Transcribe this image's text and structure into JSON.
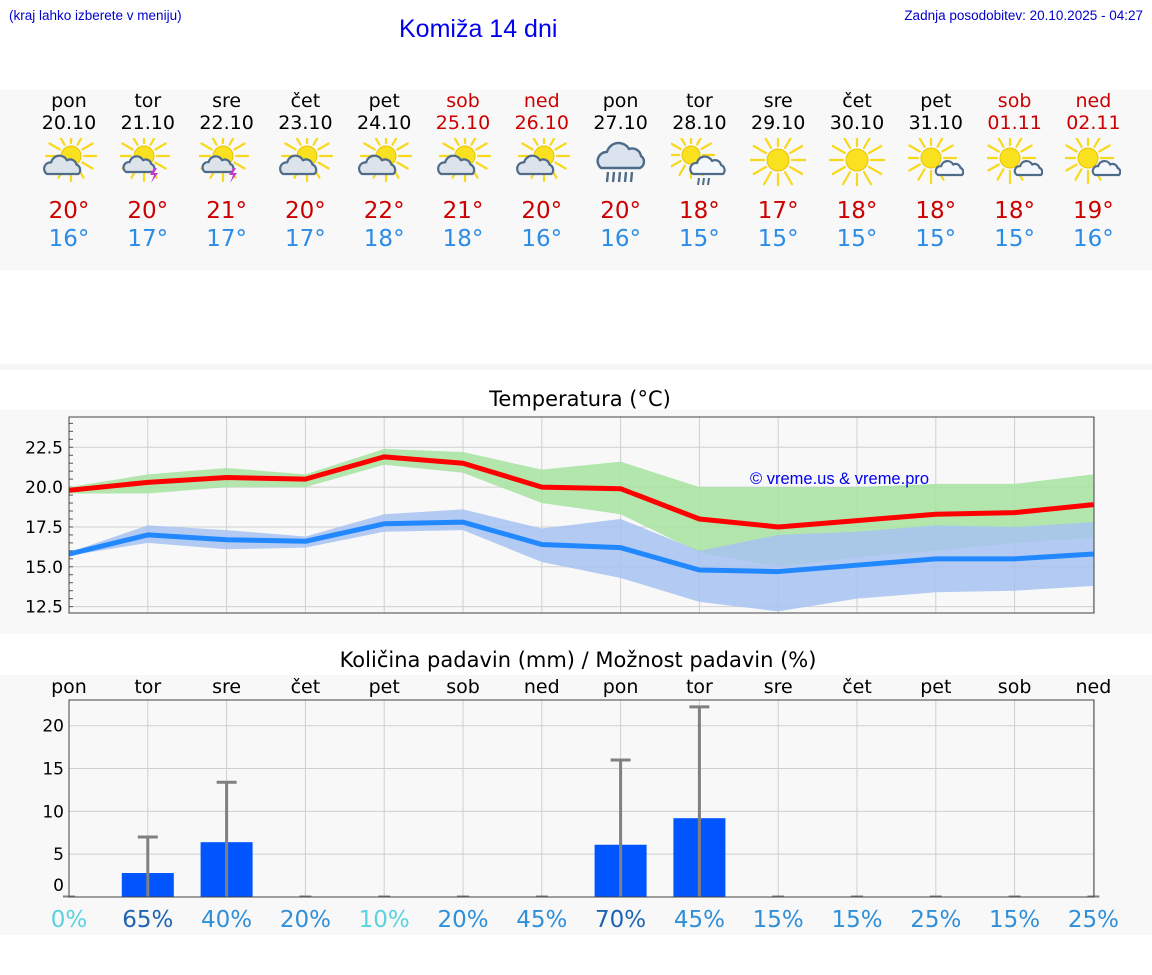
{
  "header": {
    "menu_hint": "(kraj lahko izberete v meniju)",
    "title": "Komiža 14 dni",
    "updated": "Zadnja posodobitev: 20.10.2025 - 04:27"
  },
  "days": [
    {
      "name": "pon",
      "date": "20.10",
      "weekend": false,
      "icon": "sun-cloud-icon",
      "max": "20°",
      "min": "16°"
    },
    {
      "name": "tor",
      "date": "21.10",
      "weekend": false,
      "icon": "sun-thunderstorm-icon",
      "max": "20°",
      "min": "17°"
    },
    {
      "name": "sre",
      "date": "22.10",
      "weekend": false,
      "icon": "sun-thunderstorm-icon",
      "max": "21°",
      "min": "17°"
    },
    {
      "name": "čet",
      "date": "23.10",
      "weekend": false,
      "icon": "sun-cloud-icon",
      "max": "20°",
      "min": "17°"
    },
    {
      "name": "pet",
      "date": "24.10",
      "weekend": false,
      "icon": "sun-cloud-icon",
      "max": "22°",
      "min": "18°"
    },
    {
      "name": "sob",
      "date": "25.10",
      "weekend": true,
      "icon": "sun-cloud-icon",
      "max": "21°",
      "min": "18°"
    },
    {
      "name": "ned",
      "date": "26.10",
      "weekend": true,
      "icon": "sun-cloud-icon",
      "max": "20°",
      "min": "16°"
    },
    {
      "name": "pon",
      "date": "27.10",
      "weekend": false,
      "icon": "heavy-rain-cloud-icon",
      "max": "20°",
      "min": "16°"
    },
    {
      "name": "tor",
      "date": "28.10",
      "weekend": false,
      "icon": "sun-cloud-rain-icon",
      "max": "18°",
      "min": "15°"
    },
    {
      "name": "sre",
      "date": "29.10",
      "weekend": false,
      "icon": "sun-icon",
      "max": "17°",
      "min": "15°"
    },
    {
      "name": "čet",
      "date": "30.10",
      "weekend": false,
      "icon": "sun-icon",
      "max": "18°",
      "min": "15°"
    },
    {
      "name": "pet",
      "date": "31.10",
      "weekend": false,
      "icon": "sun-small-cloud-icon",
      "max": "18°",
      "min": "15°"
    },
    {
      "name": "sob",
      "date": "01.11",
      "weekend": true,
      "icon": "sun-small-cloud-icon",
      "max": "18°",
      "min": "15°"
    },
    {
      "name": "ned",
      "date": "02.11",
      "weekend": true,
      "icon": "sun-small-cloud-icon",
      "max": "19°",
      "min": "16°"
    }
  ],
  "colors": {
    "max_temp": "#ff0000",
    "min_temp": "#2288ff",
    "max_band": "#a6e3a0",
    "min_band": "#a7c2f2",
    "bar": "#0055ff",
    "error_bar": "#808080",
    "watermark": "#0000ee"
  },
  "chart_data": [
    {
      "type": "line",
      "title": "Temperatura (°C)",
      "watermark": "© vreme.us & vreme.pro",
      "ylim": [
        12.1,
        24.4
      ],
      "yticks": [
        "12.5",
        "15.0",
        "17.5",
        "20.0",
        "22.5"
      ],
      "grid": true,
      "series": [
        {
          "name": "max",
          "values": [
            19.8,
            20.3,
            20.6,
            20.5,
            21.9,
            21.5,
            20.0,
            19.9,
            18.0,
            17.5,
            17.9,
            18.3,
            18.4,
            18.9
          ],
          "band_low": [
            19.6,
            19.6,
            20.0,
            20.0,
            21.4,
            20.9,
            19.0,
            18.3,
            15.9,
            15.0,
            15.6,
            16.0,
            16.5,
            16.8
          ],
          "band_high": [
            20.0,
            20.8,
            21.2,
            20.8,
            22.4,
            22.2,
            21.1,
            21.6,
            20.0,
            20.0,
            20.0,
            20.2,
            20.2,
            20.8
          ]
        },
        {
          "name": "min",
          "values": [
            15.8,
            17.0,
            16.7,
            16.6,
            17.7,
            17.8,
            16.4,
            16.2,
            14.8,
            14.7,
            15.1,
            15.5,
            15.5,
            15.8
          ],
          "band_low": [
            15.7,
            16.5,
            16.1,
            16.2,
            17.2,
            17.3,
            15.3,
            14.3,
            12.8,
            12.2,
            13.0,
            13.4,
            13.5,
            13.8
          ],
          "band_high": [
            15.9,
            17.6,
            17.3,
            16.9,
            18.3,
            18.6,
            17.4,
            18.0,
            16.0,
            17.0,
            17.2,
            17.6,
            17.5,
            17.8
          ]
        }
      ]
    },
    {
      "type": "bar",
      "title": "Količina padavin (mm) / Možnost padavin (%)",
      "categories": [
        "pon",
        "tor",
        "sre",
        "čet",
        "pet",
        "sob",
        "ned",
        "pon",
        "tor",
        "sre",
        "čet",
        "pet",
        "sob",
        "ned"
      ],
      "ylim": [
        0,
        23
      ],
      "yticks": [
        "0",
        "5",
        "10",
        "15",
        "20"
      ],
      "values": [
        0,
        2.8,
        6.4,
        0,
        0,
        0,
        0,
        6.1,
        9.2,
        0,
        0,
        0,
        0,
        0
      ],
      "error_high": [
        0,
        7.0,
        13.4,
        0,
        0,
        0,
        0,
        16.0,
        22.2,
        0,
        0,
        0,
        0,
        0
      ],
      "probability": [
        "0%",
        "65%",
        "40%",
        "20%",
        "10%",
        "20%",
        "45%",
        "70%",
        "45%",
        "15%",
        "15%",
        "25%",
        "15%",
        "25%"
      ],
      "probability_colors": [
        "#5ad2e0",
        "#1e64b4",
        "#2f8fd8",
        "#2f8fd8",
        "#5ad2e0",
        "#2f8fd8",
        "#2f8fd8",
        "#1e64b4",
        "#2f8fd8",
        "#2f8fd8",
        "#2f8fd8",
        "#2f8fd8",
        "#2f8fd8",
        "#2f8fd8"
      ]
    }
  ]
}
